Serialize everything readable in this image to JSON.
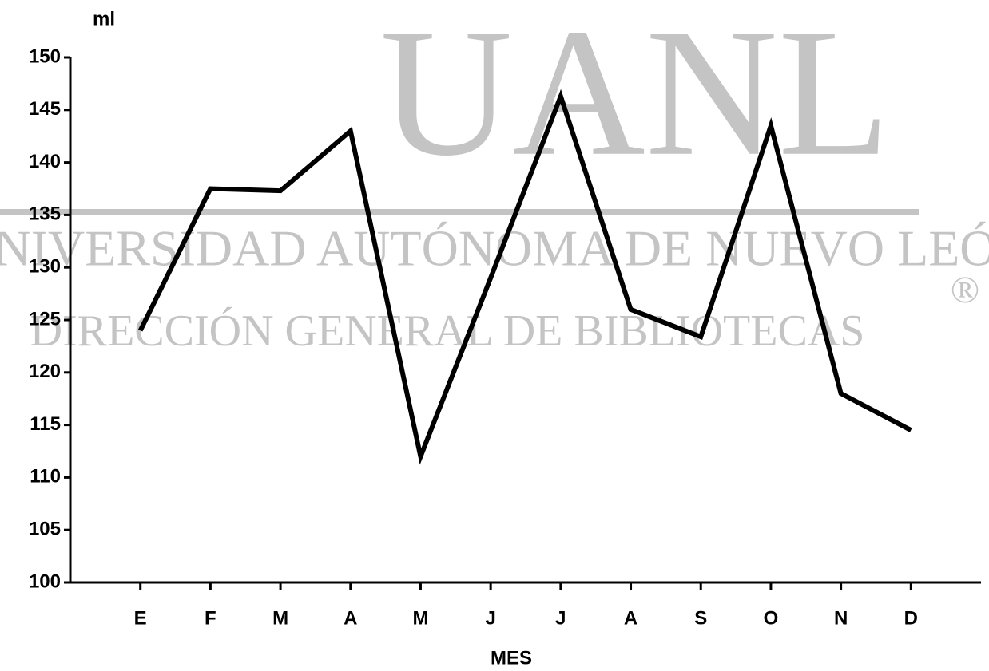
{
  "chart_data": {
    "type": "line",
    "y_label": "ml",
    "x_label": "MES",
    "categories": [
      "E",
      "F",
      "M",
      "A",
      "M",
      "J",
      "J",
      "A",
      "S",
      "O",
      "N",
      "D"
    ],
    "values": [
      124,
      137.5,
      137.3,
      143,
      112,
      129,
      146.3,
      126,
      123.4,
      143.5,
      118,
      114.5
    ],
    "color": "#000000",
    "ylim": [
      100,
      150
    ],
    "yticks": [
      100,
      105,
      110,
      115,
      120,
      125,
      130,
      135,
      140,
      145,
      150
    ],
    "grid": false,
    "watermark": [
      "UANL",
      "UNIVERSIDAD AUTÓNOMA DE NUEVO LEÓN",
      "DIRECCIÓN GENERAL DE BIBLIOTECAS",
      "®"
    ]
  }
}
